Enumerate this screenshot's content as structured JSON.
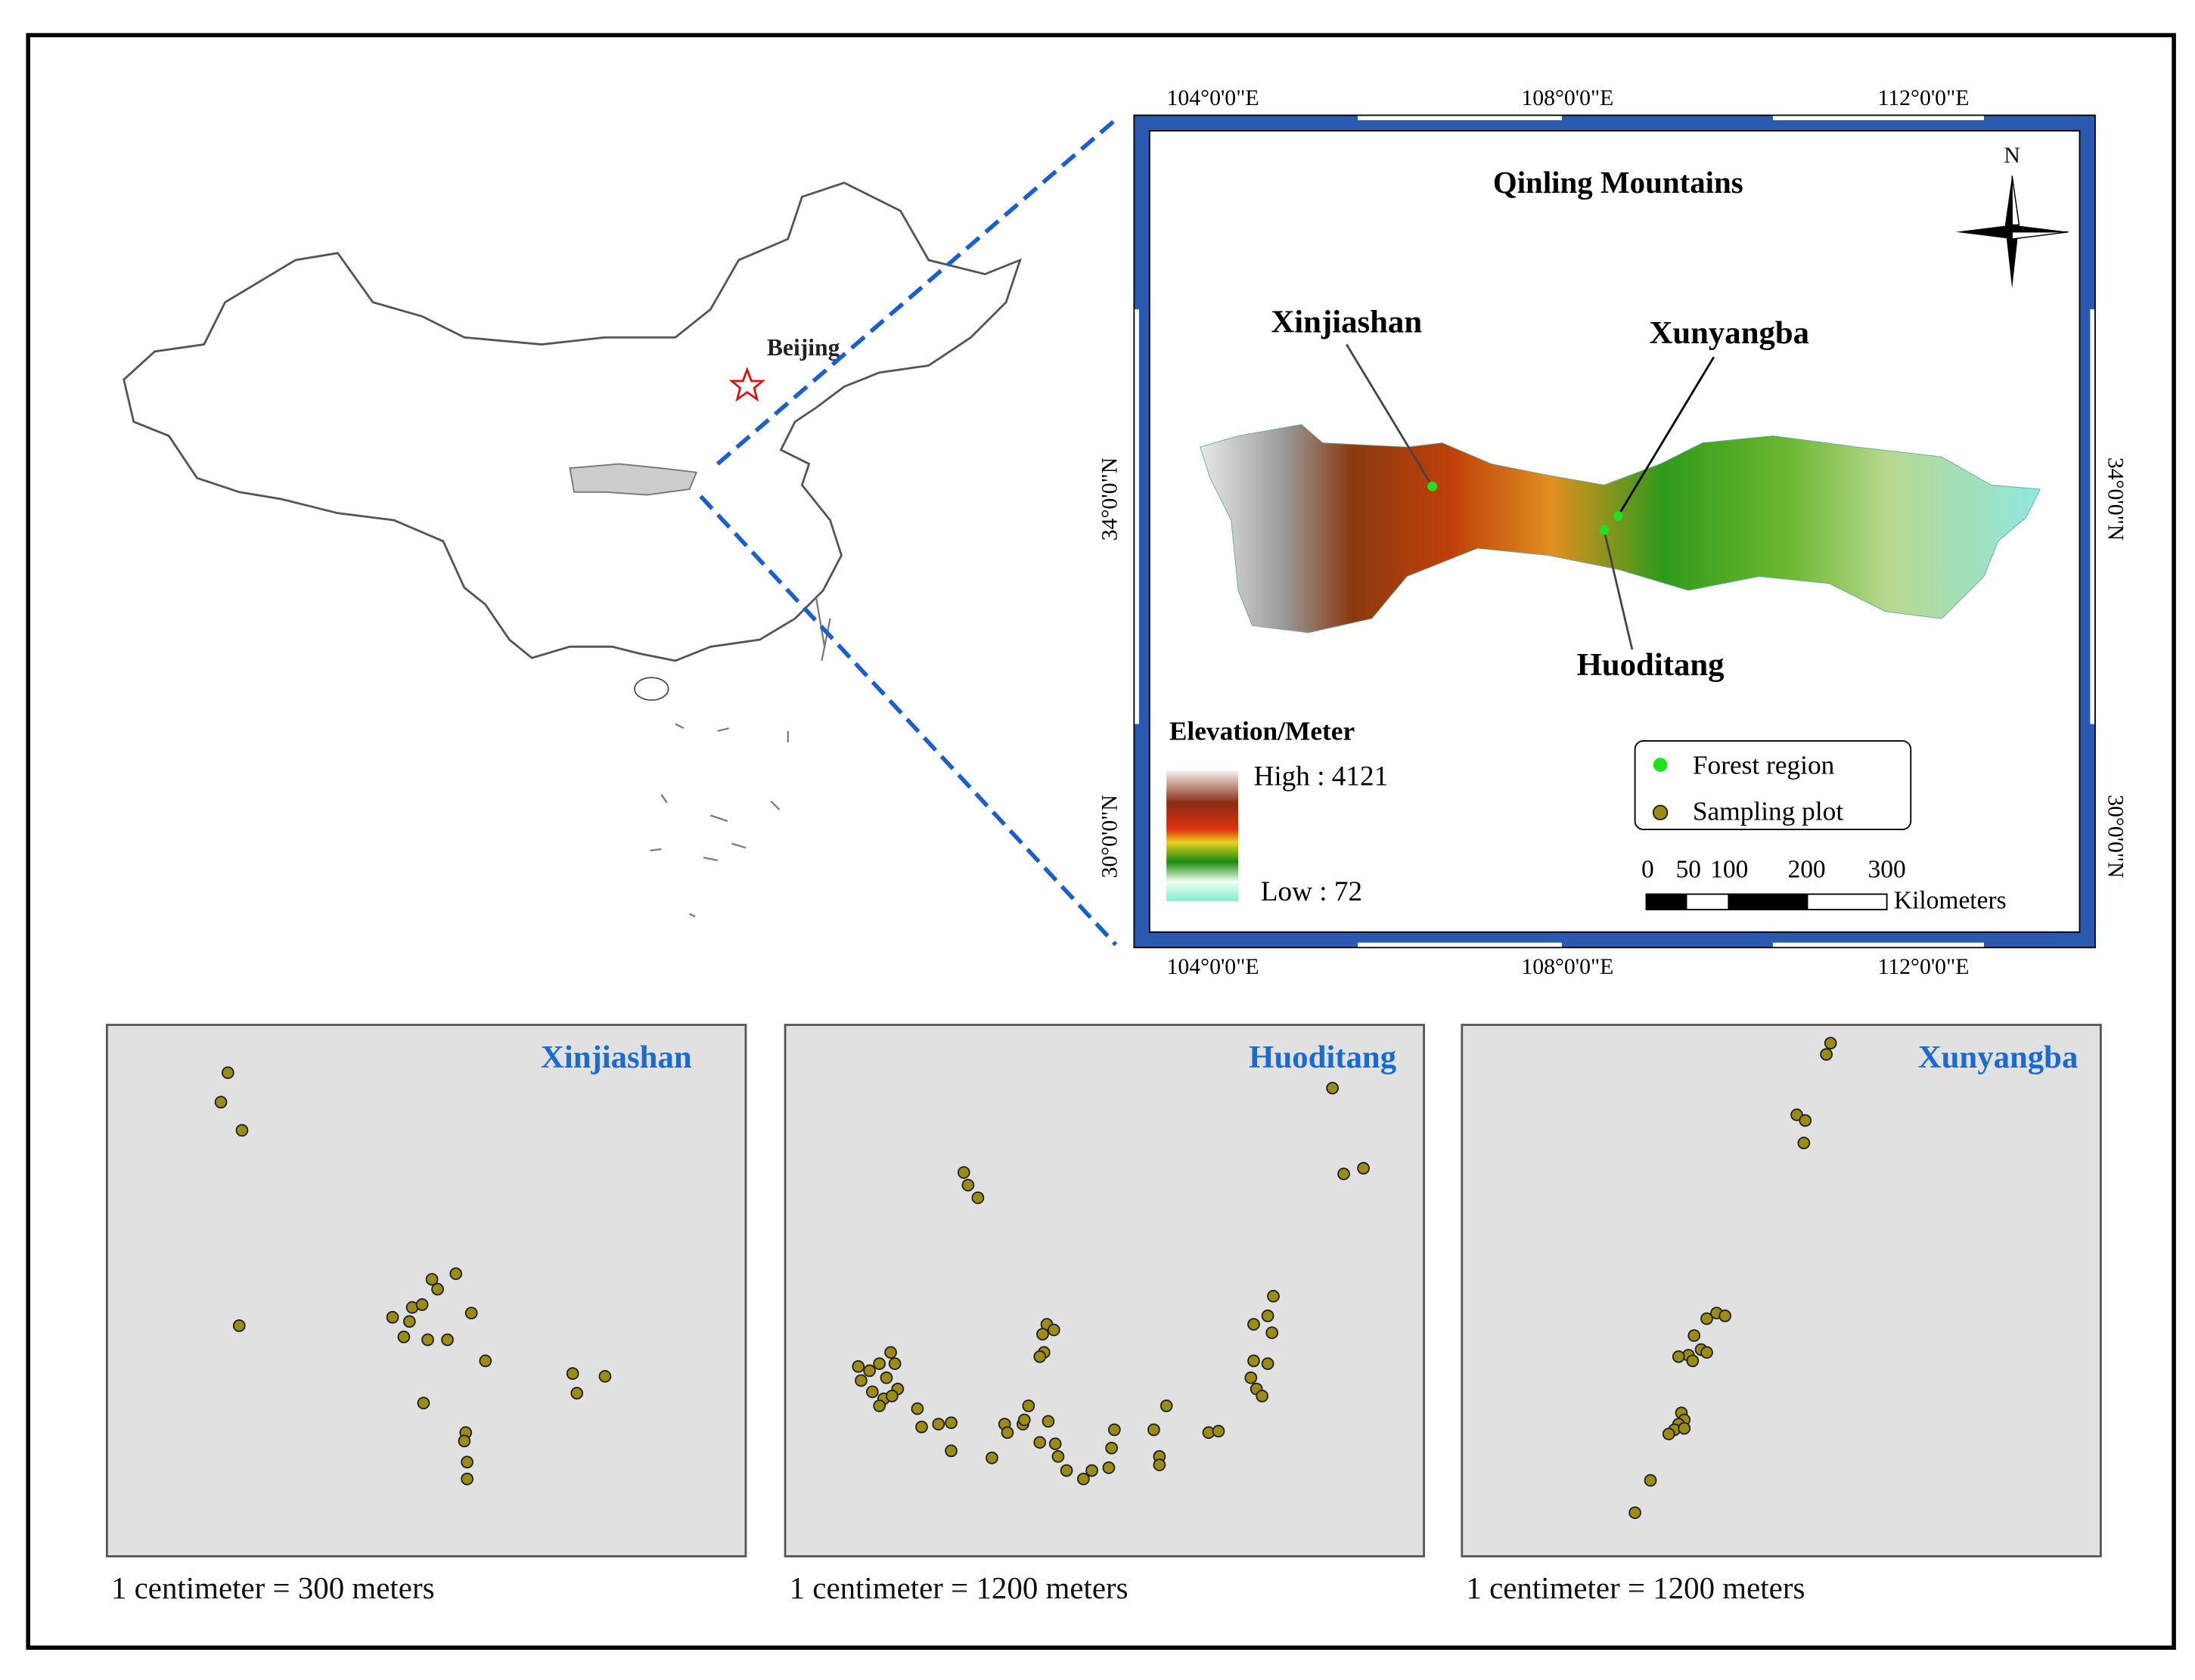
{
  "china_map": {
    "city_label": "Beijing"
  },
  "inset_map": {
    "title": "Qinling Mountains",
    "north_label": "N",
    "top_longitudes": [
      "104°0'0\"E",
      "108°0'0\"E",
      "112°0'0\"E"
    ],
    "bottom_longitudes": [
      "104°0'0\"E",
      "108°0'0\"E",
      "112°0'0\"E"
    ],
    "left_latitudes": [
      "34°0'0\"N",
      "30°0'0\"N"
    ],
    "right_latitudes": [
      "34°0'0\"N",
      "30°0'0\"N"
    ],
    "site_labels": [
      "Xinjiashan",
      "Xunyangba",
      "Huoditang"
    ],
    "elevation_legend": {
      "title": "Elevation/Meter",
      "high": "High : 4121",
      "low": "Low : 72"
    },
    "point_legend": [
      "Forest region",
      "Sampling plot"
    ],
    "scale_bar": {
      "ticks": [
        "0",
        "50",
        "100",
        "200",
        "300"
      ],
      "unit": "Kilometers"
    }
  },
  "panels": [
    {
      "title": "Xinjiashan",
      "scale": "1 centimeter = 300 meters"
    },
    {
      "title": "Huoditang",
      "scale": "1 centimeter = 1200 meters"
    },
    {
      "title": "Xunyangba",
      "scale": "1 centimeter = 1200 meters"
    }
  ]
}
